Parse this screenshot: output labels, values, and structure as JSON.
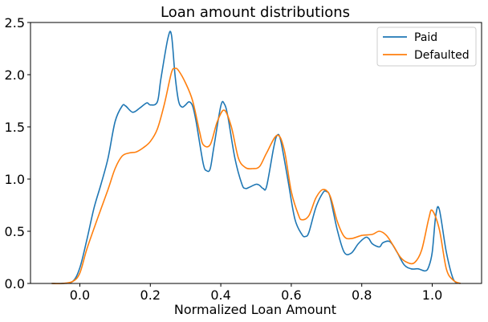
{
  "chart_data": {
    "type": "line",
    "title": "Loan amount distributions",
    "xlabel": "Normalized Loan Amount",
    "ylabel": "",
    "xlim": [
      -0.14,
      1.14
    ],
    "ylim": [
      0.0,
      2.5
    ],
    "xticks": [
      0.0,
      0.2,
      0.4,
      0.6,
      0.8,
      1.0
    ],
    "xtick_labels": [
      "0.0",
      "0.2",
      "0.4",
      "0.6",
      "0.8",
      "1.0"
    ],
    "yticks": [
      0.0,
      0.5,
      1.0,
      1.5,
      2.0,
      2.5
    ],
    "ytick_labels": [
      "0.0",
      "0.5",
      "1.0",
      "1.5",
      "2.0",
      "2.5"
    ],
    "grid": false,
    "legend_position": "top-right",
    "series": [
      {
        "name": "Paid",
        "color": "#1f77b4",
        "x": [
          -0.08,
          -0.05,
          -0.02,
          0.0,
          0.02,
          0.04,
          0.06,
          0.08,
          0.1,
          0.12,
          0.13,
          0.15,
          0.17,
          0.19,
          0.2,
          0.22,
          0.23,
          0.25,
          0.26,
          0.27,
          0.28,
          0.29,
          0.3,
          0.31,
          0.32,
          0.33,
          0.35,
          0.36,
          0.37,
          0.38,
          0.4,
          0.41,
          0.42,
          0.44,
          0.46,
          0.47,
          0.48,
          0.5,
          0.51,
          0.52,
          0.53,
          0.55,
          0.56,
          0.57,
          0.59,
          0.61,
          0.63,
          0.64,
          0.65,
          0.67,
          0.69,
          0.7,
          0.71,
          0.73,
          0.75,
          0.77,
          0.79,
          0.81,
          0.82,
          0.83,
          0.85,
          0.86,
          0.88,
          0.9,
          0.92,
          0.94,
          0.96,
          0.98,
          0.99,
          1.0,
          1.01,
          1.02,
          1.04,
          1.06,
          1.08
        ],
        "values": [
          0.0,
          0.0,
          0.02,
          0.15,
          0.42,
          0.72,
          0.95,
          1.2,
          1.55,
          1.7,
          1.7,
          1.64,
          1.68,
          1.73,
          1.71,
          1.74,
          1.96,
          2.35,
          2.38,
          2.0,
          1.75,
          1.69,
          1.71,
          1.74,
          1.7,
          1.55,
          1.15,
          1.08,
          1.1,
          1.3,
          1.7,
          1.72,
          1.6,
          1.2,
          0.95,
          0.91,
          0.92,
          0.95,
          0.94,
          0.91,
          0.93,
          1.3,
          1.42,
          1.37,
          1.0,
          0.62,
          0.47,
          0.45,
          0.49,
          0.73,
          0.87,
          0.88,
          0.83,
          0.52,
          0.3,
          0.29,
          0.38,
          0.44,
          0.43,
          0.38,
          0.35,
          0.39,
          0.4,
          0.3,
          0.18,
          0.14,
          0.14,
          0.12,
          0.16,
          0.3,
          0.65,
          0.71,
          0.3,
          0.04,
          0.0
        ]
      },
      {
        "name": "Defaulted",
        "color": "#ff7f0e",
        "x": [
          -0.08,
          -0.05,
          -0.02,
          0.0,
          0.02,
          0.05,
          0.08,
          0.1,
          0.12,
          0.14,
          0.16,
          0.18,
          0.2,
          0.22,
          0.24,
          0.26,
          0.27,
          0.28,
          0.3,
          0.32,
          0.34,
          0.35,
          0.37,
          0.39,
          0.41,
          0.43,
          0.45,
          0.47,
          0.49,
          0.51,
          0.53,
          0.56,
          0.58,
          0.6,
          0.62,
          0.63,
          0.65,
          0.67,
          0.69,
          0.71,
          0.73,
          0.75,
          0.77,
          0.8,
          0.83,
          0.85,
          0.87,
          0.89,
          0.91,
          0.93,
          0.95,
          0.97,
          0.99,
          1.0,
          1.02,
          1.04,
          1.06,
          1.08
        ],
        "values": [
          0.0,
          0.0,
          0.02,
          0.1,
          0.33,
          0.62,
          0.9,
          1.1,
          1.22,
          1.25,
          1.26,
          1.3,
          1.36,
          1.48,
          1.72,
          2.02,
          2.06,
          2.04,
          1.92,
          1.75,
          1.45,
          1.33,
          1.33,
          1.55,
          1.66,
          1.5,
          1.2,
          1.11,
          1.1,
          1.12,
          1.25,
          1.42,
          1.28,
          0.88,
          0.66,
          0.61,
          0.65,
          0.82,
          0.9,
          0.84,
          0.6,
          0.45,
          0.43,
          0.46,
          0.47,
          0.5,
          0.46,
          0.36,
          0.25,
          0.2,
          0.2,
          0.32,
          0.62,
          0.7,
          0.52,
          0.14,
          0.03,
          0.0
        ]
      }
    ]
  }
}
